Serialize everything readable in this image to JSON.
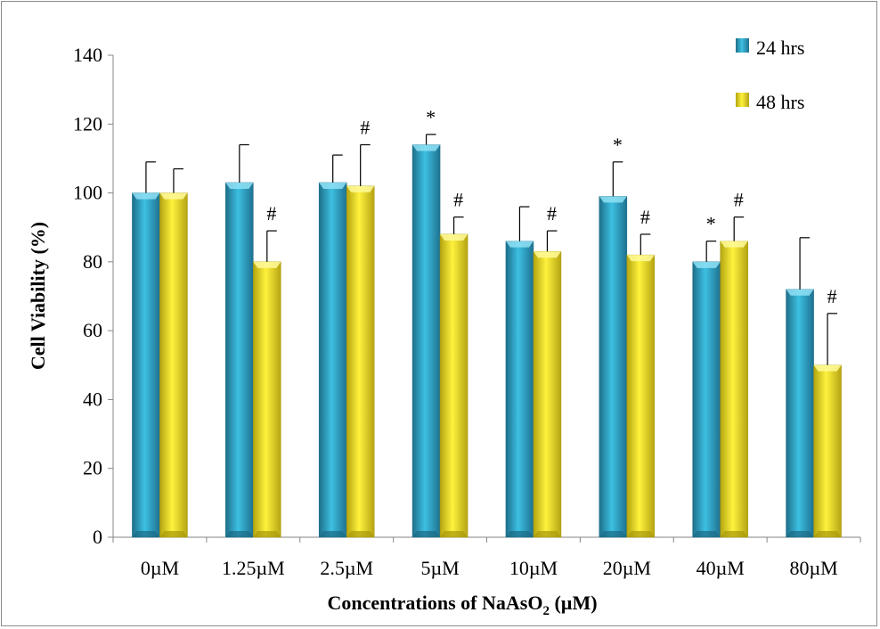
{
  "chart_data": {
    "type": "bar",
    "categories": [
      "0µM",
      "1.25µM",
      "2.5µM",
      "5µM",
      "10µM",
      "20µM",
      "40µM",
      "80µM"
    ],
    "series": [
      {
        "name": "24 hrs",
        "color": "#33b3d6",
        "values": [
          100,
          103,
          103,
          114,
          86,
          99,
          80,
          72
        ],
        "errors": [
          9,
          11,
          8,
          3,
          10,
          10,
          6,
          15
        ],
        "marks": [
          "",
          "",
          "",
          "*",
          "",
          "*",
          "*",
          ""
        ]
      },
      {
        "name": "48 hrs",
        "color": "#f5e62e",
        "values": [
          100,
          80,
          102,
          88,
          83,
          82,
          86,
          50
        ],
        "errors": [
          7,
          9,
          12,
          5,
          6,
          6,
          7,
          15
        ],
        "marks": [
          "",
          "#",
          "#",
          "#",
          "#",
          "#",
          "#",
          "#"
        ]
      }
    ],
    "ylabel": "Cell Viability (%)",
    "xlabel_main": "Concentrations of NaAsO",
    "xlabel_sub": "2",
    "xlabel_end": " (µM)",
    "ylim": [
      0,
      140
    ],
    "yticks": [
      "0",
      "20",
      "40",
      "60",
      "80",
      "100",
      "120",
      "140"
    ],
    "legend_position": "top-right",
    "grid": false
  }
}
